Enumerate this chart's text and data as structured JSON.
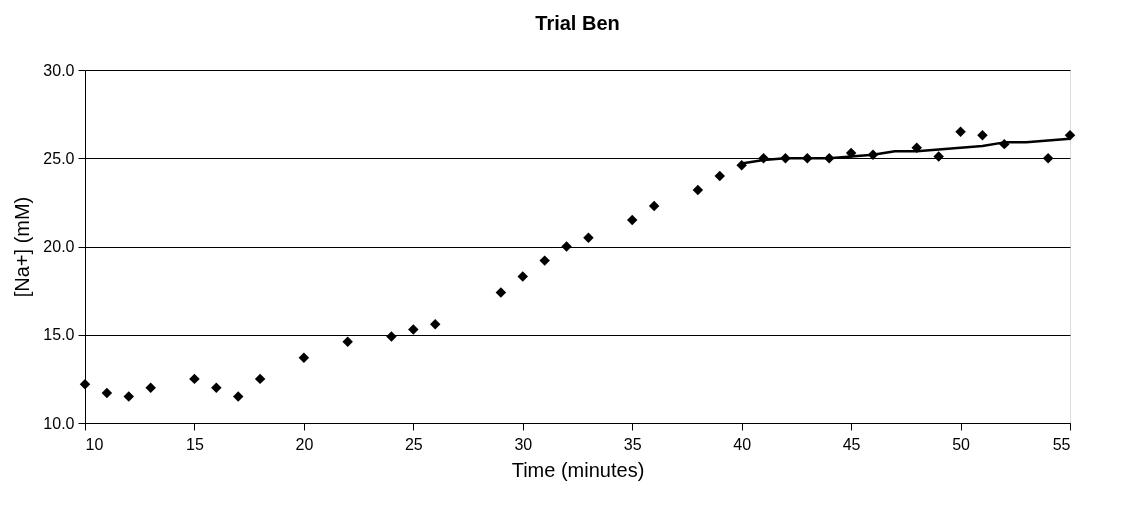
{
  "chart_data": {
    "type": "scatter",
    "title": "Trial Ben",
    "xlabel": "Time (minutes)",
    "ylabel": "[Na+] (mM)",
    "xlim": [
      10,
      55
    ],
    "xticks": [
      10,
      15,
      20,
      25,
      30,
      35,
      40,
      45,
      50,
      55
    ],
    "ylim": [
      10,
      30
    ],
    "yticks": [
      {
        "value": 10,
        "label": "10.0"
      },
      {
        "value": 15,
        "label": "15.0"
      },
      {
        "value": 20,
        "label": "20.0"
      },
      {
        "value": 25,
        "label": "25.0"
      },
      {
        "value": 30,
        "label": "30.0"
      }
    ],
    "grid": "y",
    "series": [
      {
        "type": "scatter",
        "marker": "diamond",
        "color": "#000000",
        "x": [
          10,
          11,
          12,
          13,
          15,
          16,
          17,
          18,
          20,
          22,
          24,
          25,
          26,
          29,
          30,
          31,
          32,
          33,
          35,
          36,
          38,
          39,
          40,
          41,
          42,
          43,
          44,
          45,
          46,
          48,
          49,
          50,
          51,
          52,
          54,
          55
        ],
        "values": [
          12.2,
          11.7,
          11.5,
          12.0,
          12.5,
          12.0,
          11.5,
          12.5,
          13.7,
          14.6,
          14.9,
          15.3,
          15.6,
          17.4,
          18.3,
          19.2,
          20.0,
          20.5,
          21.5,
          22.3,
          23.2,
          24.0,
          24.6,
          25.0,
          25.0,
          25.0,
          25.0,
          25.3,
          25.2,
          25.6,
          25.1,
          26.5,
          26.3,
          25.8,
          25.0,
          26.3
        ]
      },
      {
        "type": "line",
        "marker": "none",
        "line_style": "solid",
        "color": "#000000",
        "x": [
          40,
          41,
          42,
          43,
          44,
          45,
          46,
          47,
          48,
          49,
          50,
          51,
          52,
          53,
          54,
          55
        ],
        "values": [
          24.7,
          24.9,
          25.0,
          25.0,
          25.0,
          25.1,
          25.2,
          25.4,
          25.4,
          25.5,
          25.6,
          25.7,
          25.9,
          25.9,
          26.0,
          26.1
        ]
      }
    ]
  }
}
